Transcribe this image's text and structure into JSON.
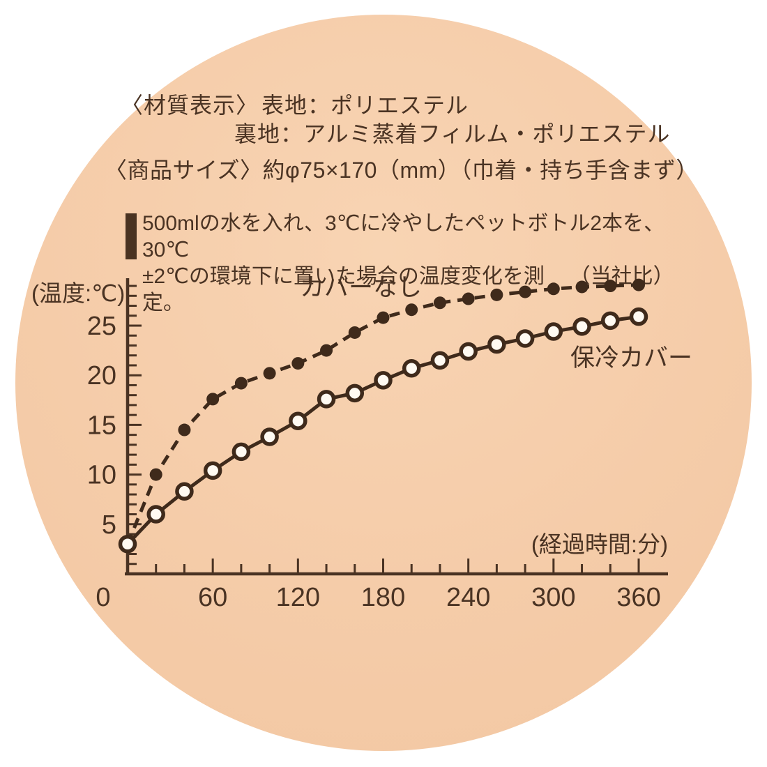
{
  "label": {
    "material_heading": "〈材質表示〉",
    "material_front": "表地：ポリエステル",
    "material_back": "裏地：アルミ蒸着フィルム・ポリエステル",
    "size_line": "〈商品サイズ〉約φ75×170（mm）（巾着・持ち手含まず）",
    "note_line1": "500mlの水を入れ、3℃に冷やしたペットボトル2本を、30℃",
    "note_line2": "±2℃の環境下に置いた場合の温度変化を測定。",
    "note_source": "（当社比）"
  },
  "palette": {
    "page_background": "#ffffff",
    "circle_background": "#f5cca9",
    "ink": "#4a3323",
    "series_line": "#3f2a1b",
    "open_dot_fill": "#fffaf2"
  },
  "chart_data": {
    "type": "line",
    "title": "",
    "ylabel": "(温度:℃)",
    "xlabel": "(経過時間:分)",
    "x": [
      0,
      20,
      40,
      60,
      80,
      100,
      120,
      140,
      160,
      180,
      200,
      220,
      240,
      260,
      280,
      300,
      320,
      340,
      360
    ],
    "series": [
      {
        "name": "カバーなし",
        "style": "dashed",
        "marker": "filled",
        "values": [
          3.0,
          10.0,
          14.5,
          17.6,
          19.2,
          20.2,
          21.2,
          22.5,
          24.3,
          25.8,
          26.6,
          27.3,
          27.7,
          28.1,
          28.4,
          28.7,
          28.9,
          29.0,
          29.1
        ]
      },
      {
        "name": "保冷カバー",
        "style": "solid",
        "marker": "open",
        "values": [
          3.0,
          6.0,
          8.3,
          10.4,
          12.3,
          13.8,
          15.4,
          17.6,
          18.2,
          19.5,
          20.7,
          21.5,
          22.4,
          23.1,
          23.7,
          24.4,
          24.9,
          25.5,
          25.9
        ]
      }
    ],
    "xlim": [
      0,
      380
    ],
    "ylim": [
      0,
      30
    ],
    "x_ticks_labeled": [
      0,
      60,
      120,
      180,
      240,
      300,
      360
    ],
    "x_tick_minor_step": 20,
    "y_ticks_labeled": [
      5,
      10,
      15,
      20,
      25
    ],
    "y_tick_minor_step": 1,
    "grid": false,
    "legend_position": "inline-labels"
  }
}
